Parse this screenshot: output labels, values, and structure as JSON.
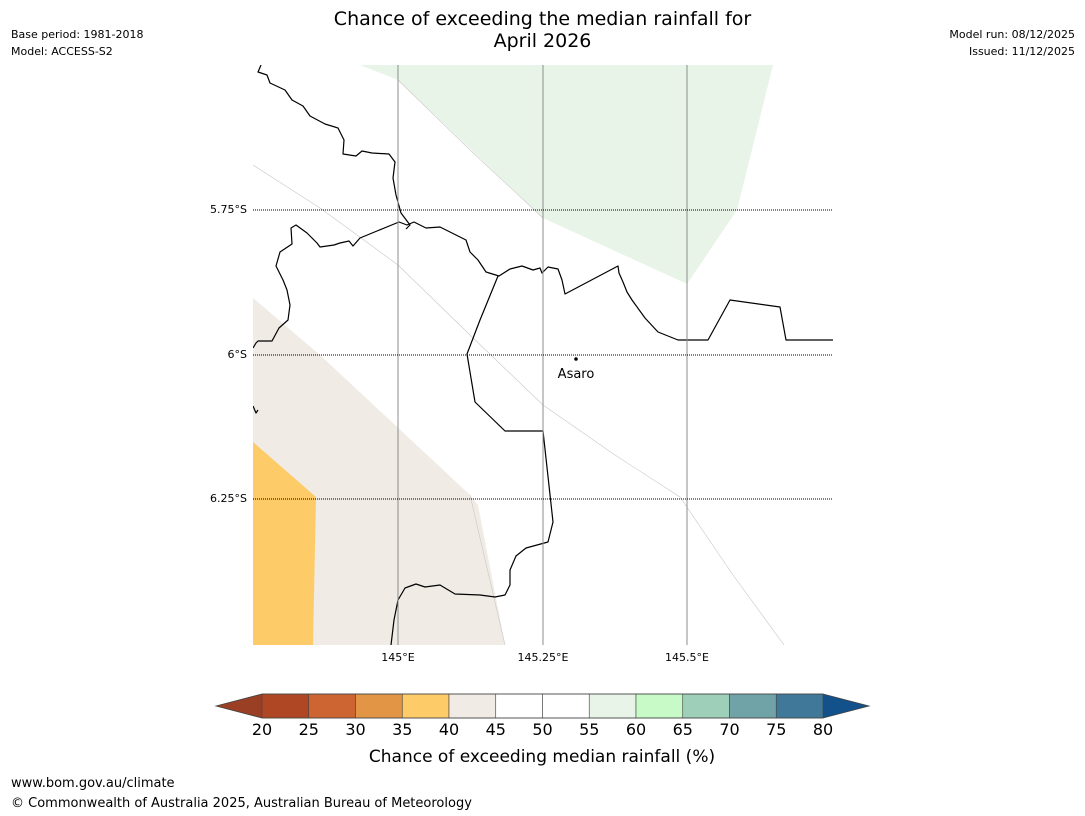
{
  "title_line1": "Chance of exceeding the median rainfall for",
  "title_line2": "April 2026",
  "base_period": "Base period: 1981-2018",
  "model": "Model: ACCESS-S2",
  "model_run": "Model run: 08/12/2025",
  "issued": "Issued: 11/12/2025",
  "map": {
    "lat_labels": [
      "5.75°S",
      "6°S",
      "6.25°S"
    ],
    "lon_labels": [
      "145°E",
      "145.25°E",
      "145.5°E"
    ],
    "city": {
      "name": "Asaro"
    },
    "colors": {
      "c35_40": "#fdcc69",
      "c40_45": "#f0ebe5",
      "c55_60": "#e8f4e7",
      "coast": "#000000",
      "grid": "#8c8c8c"
    }
  },
  "colorbar": {
    "title": "Chance of exceeding median rainfall (%)",
    "ticks": [
      "20",
      "25",
      "30",
      "35",
      "40",
      "45",
      "50",
      "55",
      "60",
      "65",
      "70",
      "75",
      "80"
    ],
    "under_color": "#9a3e24",
    "over_color": "#12518a",
    "bins": [
      {
        "from": 20,
        "to": 25,
        "color": "#b04724"
      },
      {
        "from": 25,
        "to": 30,
        "color": "#cc6532"
      },
      {
        "from": 30,
        "to": 35,
        "color": "#e29645"
      },
      {
        "from": 35,
        "to": 40,
        "color": "#fdcc69"
      },
      {
        "from": 40,
        "to": 45,
        "color": "#f0ebe5"
      },
      {
        "from": 45,
        "to": 50,
        "color": "#ffffff"
      },
      {
        "from": 50,
        "to": 55,
        "color": "#ffffff"
      },
      {
        "from": 55,
        "to": 60,
        "color": "#e8f4e7"
      },
      {
        "from": 60,
        "to": 65,
        "color": "#c8fac8"
      },
      {
        "from": 65,
        "to": 70,
        "color": "#9dcfb9"
      },
      {
        "from": 70,
        "to": 75,
        "color": "#6fa3a8"
      },
      {
        "from": 75,
        "to": 80,
        "color": "#3f7898"
      }
    ]
  },
  "footer": {
    "url": "www.bom.gov.au/climate",
    "copyright": "© Commonwealth of Australia 2025, Australian Bureau of Meteorology"
  }
}
